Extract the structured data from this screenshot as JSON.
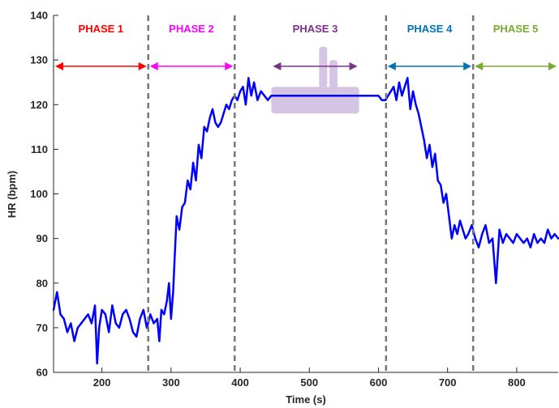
{
  "chart_data": {
    "type": "line",
    "title": "",
    "xlabel": "Time (s)",
    "ylabel": "HR (bpm)",
    "xlim": [
      130,
      860
    ],
    "ylim": [
      60,
      140
    ],
    "xticks": [
      200,
      300,
      400,
      500,
      600,
      700,
      800
    ],
    "yticks": [
      60,
      70,
      80,
      90,
      100,
      110,
      120,
      130,
      140
    ],
    "grid": false,
    "phase_boundaries": [
      267,
      392,
      611,
      737
    ],
    "phases": [
      {
        "label": "PHASE 1",
        "color": "#ff0000",
        "start": 130,
        "end": 267
      },
      {
        "label": "PHASE 2",
        "color": "#ff00ff",
        "start": 267,
        "end": 392
      },
      {
        "label": "PHASE 3",
        "color": "#7e2f8e",
        "start": 445,
        "end": 572
      },
      {
        "label": "PHASE 4",
        "color": "#0072bd",
        "start": 611,
        "end": 737
      },
      {
        "label": "PHASE 5",
        "color": "#77ac30",
        "start": 737,
        "end": 860
      }
    ],
    "series": [
      {
        "color": "#0000ff",
        "x": [
          130,
          135,
          140,
          145,
          150,
          155,
          160,
          165,
          170,
          175,
          180,
          185,
          190,
          193,
          196,
          200,
          205,
          210,
          215,
          220,
          225,
          230,
          235,
          240,
          245,
          250,
          255,
          260,
          265,
          270,
          275,
          280,
          283,
          286,
          290,
          294,
          297,
          300,
          303,
          305,
          308,
          312,
          316,
          320,
          324,
          328,
          332,
          336,
          340,
          344,
          348,
          352,
          356,
          360,
          364,
          368,
          372,
          376,
          380,
          384,
          388,
          392,
          396,
          400,
          404,
          408,
          412,
          416,
          420,
          425,
          430,
          435,
          440,
          445,
          600,
          605,
          610,
          614,
          618,
          622,
          626,
          630,
          634,
          638,
          642,
          646,
          650,
          654,
          658,
          662,
          666,
          670,
          674,
          678,
          682,
          686,
          690,
          694,
          698,
          702,
          706,
          710,
          714,
          718,
          722,
          726,
          730,
          735,
          740,
          745,
          750,
          755,
          760,
          765,
          770,
          775,
          780,
          785,
          790,
          795,
          800,
          805,
          810,
          815,
          820,
          825,
          830,
          835,
          840,
          845,
          850,
          855,
          860
        ],
        "y": [
          74,
          78,
          73,
          72,
          69,
          71,
          67,
          70,
          71,
          72,
          73,
          71,
          75,
          62,
          70,
          74,
          73,
          69,
          75,
          71,
          70,
          73,
          74,
          72,
          69,
          68,
          72,
          74,
          70,
          73,
          71,
          72,
          67,
          74,
          73,
          76,
          80,
          72,
          78,
          85,
          95,
          92,
          97,
          98,
          103,
          101,
          107,
          103,
          111,
          108,
          115,
          114,
          117,
          119,
          116,
          115,
          116,
          118,
          120,
          119,
          121,
          122,
          121,
          123,
          124,
          120,
          126,
          122,
          125,
          121,
          123,
          122,
          121,
          122,
          122,
          121,
          121,
          122,
          123,
          124,
          121,
          125,
          122,
          124,
          126,
          119,
          123,
          120,
          118,
          115,
          112,
          108,
          111,
          106,
          109,
          103,
          102,
          98,
          100,
          95,
          90,
          93,
          91,
          94,
          92,
          90,
          91,
          93,
          90,
          88,
          91,
          93,
          89,
          90,
          80,
          92,
          89,
          91,
          90,
          89,
          91,
          90,
          89,
          90,
          88,
          91,
          89,
          90,
          89,
          92,
          90,
          91,
          90
        ]
      }
    ],
    "highlight": {
      "color": "#d6c4e4",
      "x_range": [
        445,
        572
      ],
      "y_range": [
        118,
        124
      ],
      "spikes": [
        {
          "x": 520,
          "y": 133
        },
        {
          "x": 535,
          "y": 130
        }
      ]
    }
  }
}
